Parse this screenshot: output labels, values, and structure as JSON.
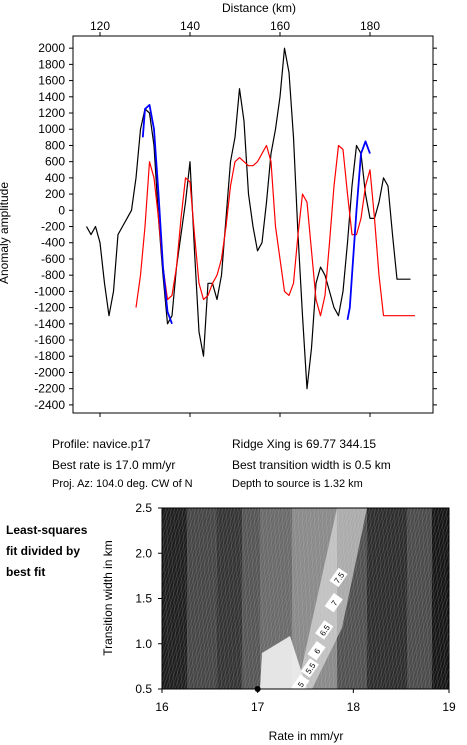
{
  "chart_data": [
    {
      "type": "line",
      "xlabel": "Distance (km)",
      "ylabel": "Anomaly amplitude",
      "xlim": [
        114,
        194
      ],
      "ylim": [
        -2500,
        2150
      ],
      "xticks": [
        120,
        140,
        160,
        180
      ],
      "yticks": [
        -2400,
        -2200,
        -2000,
        -1800,
        -1600,
        -1400,
        -1200,
        -1000,
        -800,
        -600,
        -400,
        -200,
        0,
        200,
        400,
        600,
        800,
        1000,
        1200,
        1400,
        1600,
        1800,
        2000
      ],
      "series": [
        {
          "color": "#000000",
          "x": [
            117,
            118,
            119,
            120,
            121,
            122,
            123,
            124,
            125,
            126,
            127,
            128,
            129,
            130,
            131,
            132,
            133,
            134,
            135,
            136,
            137,
            138,
            139,
            140,
            141,
            142,
            143,
            144,
            145,
            146,
            147,
            148,
            149,
            150,
            151,
            152,
            153,
            154,
            155,
            156,
            157,
            158,
            159,
            160,
            161,
            162,
            163,
            164,
            165,
            166,
            167,
            168,
            169,
            170,
            171,
            172,
            173,
            174,
            175,
            176,
            177,
            178,
            179,
            180,
            181,
            182,
            183,
            184,
            185,
            186,
            187,
            188,
            189
          ],
          "y": [
            -200,
            -300,
            -200,
            -400,
            -900,
            -1300,
            -1000,
            -300,
            -200,
            -100,
            0,
            400,
            1000,
            1250,
            1200,
            800,
            -100,
            -800,
            -1400,
            -1300,
            -700,
            -300,
            100,
            600,
            -500,
            -1500,
            -1800,
            -900,
            -900,
            -1100,
            -800,
            -100,
            600,
            900,
            1500,
            1100,
            200,
            -200,
            -500,
            -400,
            100,
            700,
            1000,
            1400,
            2000,
            1700,
            900,
            -300,
            -1300,
            -2200,
            -1700,
            -900,
            -700,
            -800,
            -1000,
            -1200,
            -1300,
            -1000,
            -400,
            300,
            800,
            700,
            200,
            -100,
            -100,
            100,
            400,
            300,
            -300,
            -850,
            -850,
            -850,
            -850
          ]
        },
        {
          "color": "#ff0000",
          "x": [
            128,
            129,
            130,
            131,
            132,
            133,
            134,
            135,
            136,
            137,
            138,
            139,
            140,
            141,
            142,
            143,
            144,
            145,
            146,
            147,
            148,
            149,
            150,
            151,
            152,
            153,
            154,
            155,
            156,
            157,
            158,
            159,
            160,
            161,
            162,
            163,
            164,
            165,
            166,
            167,
            168,
            169,
            170,
            171,
            172,
            173,
            174,
            175,
            176,
            177,
            178,
            179,
            180,
            181,
            182,
            183,
            184,
            185,
            186,
            187,
            188,
            189,
            190
          ],
          "y": [
            -1200,
            -800,
            -200,
            600,
            400,
            -100,
            -700,
            -1100,
            -1050,
            -700,
            -100,
            400,
            350,
            -300,
            -900,
            -1100,
            -1050,
            -900,
            -800,
            -600,
            -200,
            300,
            600,
            650,
            600,
            550,
            550,
            600,
            700,
            800,
            600,
            -200,
            -600,
            -1000,
            -1050,
            -900,
            -300,
            200,
            100,
            -500,
            -1100,
            -1300,
            -1050,
            -400,
            300,
            800,
            750,
            200,
            -300,
            -300,
            -100,
            300,
            500,
            -100,
            -800,
            -1300,
            -1300,
            -1300,
            -1300,
            -1300,
            -1300,
            -1300,
            -1300
          ]
        },
        {
          "color": "#0000ff",
          "x": [
            129.5,
            130,
            131,
            132,
            133,
            134,
            135,
            136
          ],
          "y": [
            900,
            1250,
            1300,
            1000,
            200,
            -700,
            -1250,
            -1400
          ]
        },
        {
          "color": "#0000ff",
          "x": [
            175,
            175.5,
            176,
            177,
            178,
            179,
            180
          ],
          "y": [
            -1350,
            -1200,
            -800,
            0,
            700,
            850,
            700
          ]
        }
      ]
    },
    {
      "type": "contour",
      "xlabel": "Rate in mm/yr",
      "ylabel": "Transition width in km",
      "xlim": [
        16,
        19
      ],
      "ylim": [
        0.5,
        2.5
      ],
      "xticks": [
        16,
        17,
        18,
        19
      ],
      "yticks": [
        0.5,
        1.0,
        1.5,
        2.0,
        2.5
      ],
      "contour_labels": [
        "7.5",
        "7",
        "6.5",
        "6",
        "5.5",
        "5"
      ],
      "best_fit": {
        "rate": 17.0,
        "width": 0.5
      }
    }
  ],
  "info": {
    "profile": "Profile: navice.p17",
    "ridge": "Ridge Xing is 69.77 344.15",
    "rate": "Best rate is 17.0 mm/yr",
    "width": "Best transition width is 0.5 km",
    "az": "Proj. Az: 104.0 deg. CW of N",
    "depth": "Depth to source is    1.32 km"
  },
  "side_label": [
    "Least-squares",
    "fit divided by",
    "best fit"
  ]
}
